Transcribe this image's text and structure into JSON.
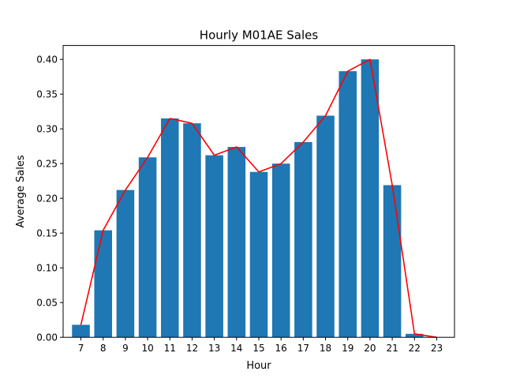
{
  "chart_data": {
    "type": "bar",
    "title": "Hourly M01AE Sales",
    "xlabel": "Hour",
    "ylabel": "Average Sales",
    "categories": [
      "7",
      "8",
      "9",
      "10",
      "11",
      "12",
      "13",
      "14",
      "15",
      "16",
      "17",
      "18",
      "19",
      "20",
      "21",
      "22",
      "23"
    ],
    "series": [
      {
        "kind": "bar",
        "color": "#1f77b4",
        "values": [
          0.018,
          0.154,
          0.212,
          0.259,
          0.315,
          0.308,
          0.262,
          0.274,
          0.238,
          0.25,
          0.281,
          0.319,
          0.383,
          0.4,
          0.219,
          0.005,
          0.0
        ]
      },
      {
        "kind": "line",
        "color": "#ff0000",
        "values": [
          0.018,
          0.154,
          0.212,
          0.259,
          0.315,
          0.308,
          0.262,
          0.274,
          0.238,
          0.25,
          0.281,
          0.319,
          0.383,
          0.4,
          0.219,
          0.005,
          0.0
        ]
      }
    ],
    "ylim": [
      0,
      0.42
    ],
    "yticks": [
      "0.00",
      "0.05",
      "0.10",
      "0.15",
      "0.20",
      "0.25",
      "0.30",
      "0.35",
      "0.40"
    ],
    "grid": false,
    "legend": "none"
  }
}
